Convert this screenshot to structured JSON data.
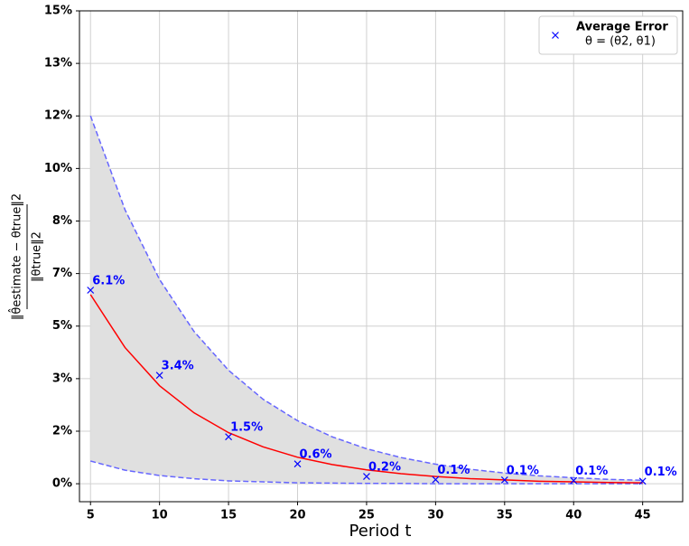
{
  "chart_data": {
    "type": "scatter",
    "x_label": "Period t",
    "y_label_numerator": "‖θ̂estimate − θtrue‖2",
    "y_label_denominator": "‖θtrue‖2",
    "x": [
      5,
      10,
      15,
      20,
      25,
      30,
      35,
      40,
      45
    ],
    "series": [
      {
        "name": "Average Error",
        "color": "#0000ff",
        "marker": "x",
        "values": [
          6.14,
          3.44,
          1.49,
          0.63,
          0.23,
          0.13,
          0.12,
          0.1,
          0.08
        ],
        "value_labels": [
          "6.1%",
          "3.4%",
          "1.5%",
          "0.6%",
          "0.2%",
          "0.1%",
          "0.1%",
          "0.1%",
          "0.1%"
        ]
      }
    ],
    "legend_note": "θ = (θ2, θ1)",
    "curves": {
      "x": [
        5,
        7.5,
        10,
        12.5,
        15,
        17.5,
        20,
        22.5,
        25,
        27.5,
        30,
        32.5,
        35,
        37.5,
        40,
        42.5,
        45
      ],
      "fit": {
        "color": "#ff0000",
        "values": [
          6.0,
          4.32,
          3.11,
          2.25,
          1.62,
          1.17,
          0.84,
          0.61,
          0.44,
          0.32,
          0.23,
          0.16,
          0.12,
          0.08,
          0.06,
          0.04,
          0.03
        ]
      },
      "upper": {
        "color": "#6666ff",
        "values": [
          11.67,
          8.69,
          6.48,
          4.83,
          3.6,
          2.68,
          2.0,
          1.49,
          1.11,
          0.83,
          0.62,
          0.46,
          0.34,
          0.25,
          0.19,
          0.14,
          0.11
        ]
      },
      "lower": {
        "color": "#6666ff",
        "values": [
          0.72,
          0.43,
          0.26,
          0.16,
          0.09,
          0.06,
          0.03,
          0.02,
          0.01,
          0.01,
          0,
          0,
          0,
          0,
          0,
          0,
          0
        ]
      },
      "band_color": "#e0e0e0"
    },
    "xlim": [
      4.2,
      47.9
    ],
    "ylim": [
      -0.57,
      15
    ],
    "xticks": [
      5,
      10,
      15,
      20,
      25,
      30,
      35,
      40,
      45
    ],
    "yticks": [
      {
        "value": 0,
        "label": "0%"
      },
      {
        "value": 1.667,
        "label": "2%"
      },
      {
        "value": 3.333,
        "label": "3%"
      },
      {
        "value": 5,
        "label": "5%"
      },
      {
        "value": 6.667,
        "label": "7%"
      },
      {
        "value": 8.333,
        "label": "8%"
      },
      {
        "value": 10,
        "label": "10%"
      },
      {
        "value": 11.667,
        "label": "12%"
      },
      {
        "value": 13.333,
        "label": "13%"
      },
      {
        "value": 15,
        "label": "15%"
      }
    ],
    "grid": true,
    "legend": "upper right"
  }
}
